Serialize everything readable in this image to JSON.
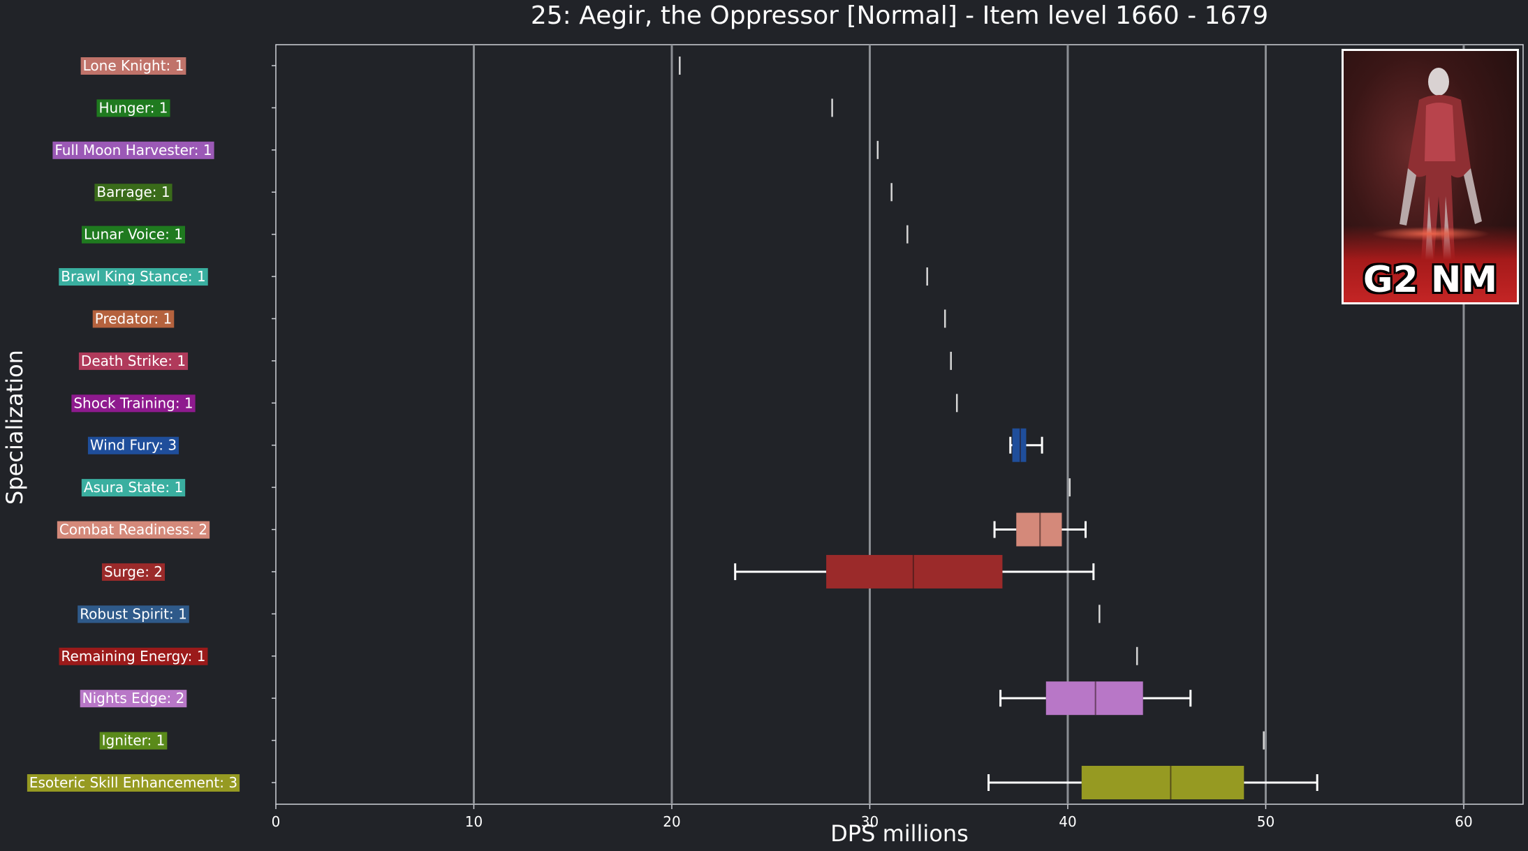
{
  "chart_data": {
    "type": "box",
    "orientation": "horizontal",
    "title": "25: Aegir, the Oppressor [Normal] - Item level 1660 - 1679",
    "xlabel": "DPS millions",
    "ylabel": "Specialization",
    "xlim": [
      0,
      63
    ],
    "xticks": [
      0,
      10,
      20,
      30,
      40,
      50,
      60
    ],
    "grid": "vertical",
    "series": [
      {
        "name": "Lone Knight: 1",
        "color": "#c0736a",
        "min": 20.4,
        "q1": 20.4,
        "median": 20.4,
        "q3": 20.4,
        "max": 20.4
      },
      {
        "name": "Hunger: 1",
        "color": "#1f7a1f",
        "min": 28.1,
        "q1": 28.1,
        "median": 28.1,
        "q3": 28.1,
        "max": 28.1
      },
      {
        "name": "Full Moon Harvester: 1",
        "color": "#9b59b6",
        "min": 30.4,
        "q1": 30.4,
        "median": 30.4,
        "q3": 30.4,
        "max": 30.4
      },
      {
        "name": "Barrage: 1",
        "color": "#3a6b1a",
        "min": 31.1,
        "q1": 31.1,
        "median": 31.1,
        "q3": 31.1,
        "max": 31.1
      },
      {
        "name": "Lunar Voice: 1",
        "color": "#1f7a1f",
        "min": 31.9,
        "q1": 31.9,
        "median": 31.9,
        "q3": 31.9,
        "max": 31.9
      },
      {
        "name": "Brawl King Stance: 1",
        "color": "#3aafa0",
        "min": 32.9,
        "q1": 32.9,
        "median": 32.9,
        "q3": 32.9,
        "max": 32.9
      },
      {
        "name": "Predator: 1",
        "color": "#b5623e",
        "min": 33.8,
        "q1": 33.8,
        "median": 33.8,
        "q3": 33.8,
        "max": 33.8
      },
      {
        "name": "Death Strike: 1",
        "color": "#b03a5b",
        "min": 34.1,
        "q1": 34.1,
        "median": 34.1,
        "q3": 34.1,
        "max": 34.1
      },
      {
        "name": "Shock Training: 1",
        "color": "#8e1a8e",
        "min": 34.4,
        "q1": 34.4,
        "median": 34.4,
        "q3": 34.4,
        "max": 34.4
      },
      {
        "name": "Wind Fury: 3",
        "color": "#1f4e9b",
        "min": 37.1,
        "q1": 37.2,
        "median": 37.6,
        "q3": 37.9,
        "max": 38.7
      },
      {
        "name": "Asura State: 1",
        "color": "#3aafa0",
        "min": 40.1,
        "q1": 40.1,
        "median": 40.1,
        "q3": 40.1,
        "max": 40.1
      },
      {
        "name": "Combat Readiness: 2",
        "color": "#d4897a",
        "min": 36.3,
        "q1": 37.4,
        "median": 38.6,
        "q3": 39.7,
        "max": 40.9
      },
      {
        "name": "Surge: 2",
        "color": "#9b2a2a",
        "min": 23.2,
        "q1": 27.8,
        "median": 32.2,
        "q3": 36.7,
        "max": 41.3
      },
      {
        "name": "Robust Spirit: 1",
        "color": "#2f5a8a",
        "min": 41.6,
        "q1": 41.6,
        "median": 41.6,
        "q3": 41.6,
        "max": 41.6
      },
      {
        "name": "Remaining Energy: 1",
        "color": "#9b1a1a",
        "min": 43.5,
        "q1": 43.5,
        "median": 43.5,
        "q3": 43.5,
        "max": 43.5
      },
      {
        "name": "Nights Edge: 2",
        "color": "#b877c7",
        "min": 36.6,
        "q1": 38.9,
        "median": 41.4,
        "q3": 43.8,
        "max": 46.2
      },
      {
        "name": "Igniter: 1",
        "color": "#5a8a1a",
        "min": 49.9,
        "q1": 49.9,
        "median": 49.9,
        "q3": 49.9,
        "max": 49.9
      },
      {
        "name": "Esoteric Skill Enhancement: 3",
        "color": "#969a22",
        "min": 36.0,
        "q1": 40.7,
        "median": 45.2,
        "q3": 48.9,
        "max": 52.6
      }
    ]
  },
  "boss_card": {
    "label": "G2 NM"
  }
}
